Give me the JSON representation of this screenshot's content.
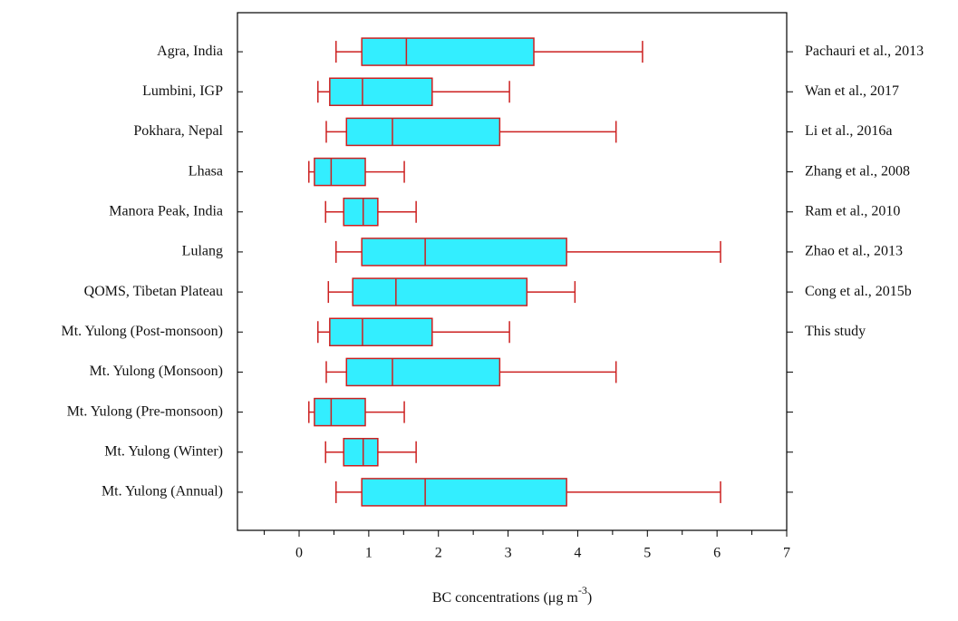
{
  "chart_data": {
    "type": "box",
    "xlabel": "BC concentrations (μg m",
    "xlabel_superscript": "-3",
    "xlabel_end": ")",
    "categories": [
      "Agra, India",
      "Lumbini, IGP",
      "Pokhara, Nepal",
      "Lhasa",
      "Manora Peak, India",
      "Lulang",
      "QOMS, Tibetan Plateau",
      "Mt. Yulong (Post-monsoon)",
      "Mt. Yulong (Monsoon)",
      "Mt. Yulong (Pre-monsoon)",
      "Mt. Yulong (Winter)",
      "Mt. Yulong (Annual)"
    ],
    "references": [
      "Pachauri et al., 2013",
      "Wan et al., 2017",
      "Li et al., 2016a",
      "Zhang et al., 2008",
      "Ram et al., 2010",
      "Zhao et al., 2013",
      "Cong et al., 2015b",
      "This study"
    ],
    "boxes": [
      {
        "min": 0.53,
        "q1": 0.9,
        "median": 1.54,
        "q3": 3.37,
        "max": 4.93
      },
      {
        "min": 0.27,
        "q1": 0.44,
        "median": 0.91,
        "q3": 1.91,
        "max": 3.02
      },
      {
        "min": 0.39,
        "q1": 0.68,
        "median": 1.34,
        "q3": 2.88,
        "max": 4.55
      },
      {
        "min": 0.14,
        "q1": 0.22,
        "median": 0.46,
        "q3": 0.95,
        "max": 1.51
      },
      {
        "min": 0.38,
        "q1": 0.64,
        "median": 0.92,
        "q3": 1.13,
        "max": 1.68
      },
      {
        "min": 0.53,
        "q1": 0.9,
        "median": 1.81,
        "q3": 3.84,
        "max": 6.05
      },
      {
        "min": 0.42,
        "q1": 0.77,
        "median": 1.39,
        "q3": 3.27,
        "max": 3.96
      },
      {
        "min": 0.27,
        "q1": 0.44,
        "median": 0.91,
        "q3": 1.91,
        "max": 3.02
      },
      {
        "min": 0.39,
        "q1": 0.68,
        "median": 1.34,
        "q3": 2.88,
        "max": 4.55
      },
      {
        "min": 0.14,
        "q1": 0.22,
        "median": 0.46,
        "q3": 0.95,
        "max": 1.51
      },
      {
        "min": 0.38,
        "q1": 0.64,
        "median": 0.92,
        "q3": 1.13,
        "max": 1.68
      },
      {
        "min": 0.53,
        "q1": 0.9,
        "median": 1.81,
        "q3": 3.84,
        "max": 6.05
      }
    ],
    "box_color": "#33eeff",
    "line_color": "#cc2020",
    "xlim": [
      -0.885,
      7
    ],
    "xticks": [
      0,
      1,
      2,
      3,
      4,
      5,
      6,
      7
    ],
    "xminorticks": [
      -0.5,
      0.5,
      1.5,
      2.5,
      3.5,
      4.5,
      5.5,
      6.5
    ]
  }
}
